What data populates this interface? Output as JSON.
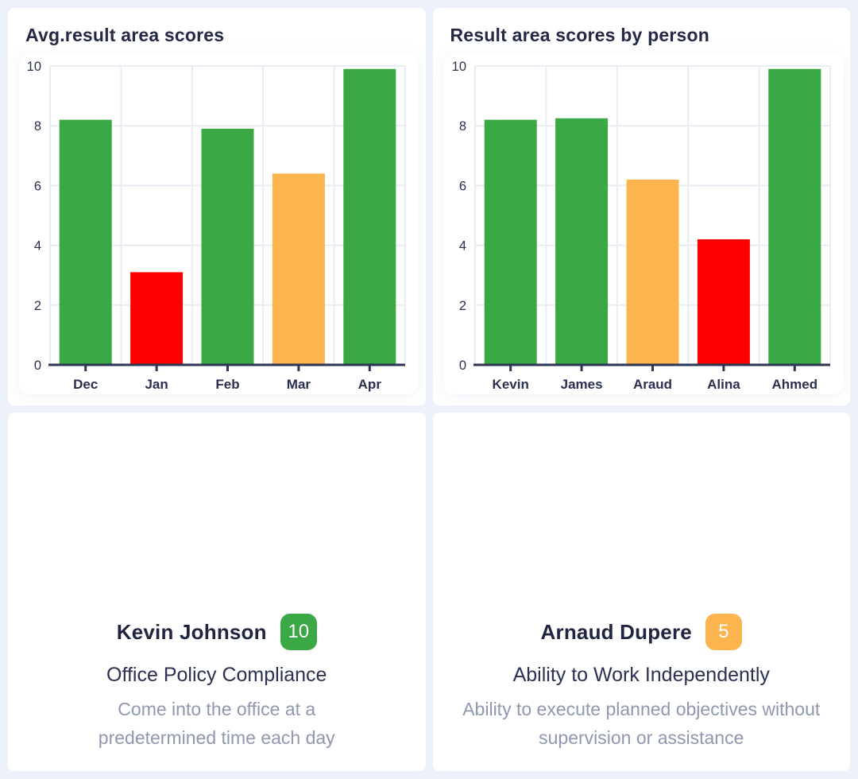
{
  "page": {
    "background": "#edf1f9",
    "card_background": "#ffffff"
  },
  "colors": {
    "green": "#3aa845",
    "orange": "#fcb44e",
    "red": "#fe0000",
    "title": "#232946",
    "tick": "#2a3050",
    "axis": "#2c3551",
    "grid": "#e8edf4",
    "muted_text": "#8f98b0"
  },
  "chart_data": [
    {
      "type": "bar",
      "title": "Avg.result area scores",
      "categories": [
        "Dec",
        "Jan",
        "Feb",
        "Mar",
        "Apr"
      ],
      "values": [
        8.2,
        3.1,
        7.9,
        6.4,
        9.9
      ],
      "bar_colors": [
        "#3aa845",
        "#fe0000",
        "#3aa845",
        "#fcb44e",
        "#3aa845"
      ],
      "xlabel": "",
      "ylabel": "",
      "ylim": [
        0,
        10
      ],
      "yticks": [
        0,
        2,
        4,
        6,
        8,
        10
      ],
      "grid": true,
      "legend": "none"
    },
    {
      "type": "bar",
      "title": "Result area scores by person",
      "categories": [
        "Kevin",
        "James",
        "Araud",
        "Alina",
        "Ahmed"
      ],
      "values": [
        8.2,
        8.25,
        6.2,
        4.2,
        9.9
      ],
      "bar_colors": [
        "#3aa845",
        "#3aa845",
        "#fcb44e",
        "#fe0000",
        "#3aa845"
      ],
      "xlabel": "",
      "ylabel": "",
      "ylim": [
        0,
        10
      ],
      "yticks": [
        0,
        2,
        4,
        6,
        8,
        10
      ],
      "grid": true,
      "legend": "none"
    }
  ],
  "highlight_cards": [
    {
      "person": "Kevin Johnson",
      "score": "10",
      "score_color": "#3aa845",
      "area": "Office Policy Compliance",
      "description": "Come into the office at a predetermined time each day"
    },
    {
      "person": "Arnaud Dupere",
      "score": "5",
      "score_color": "#fcb44e",
      "area": "Ability to Work Independently",
      "description": "Ability to execute planned objectives without supervision or assistance"
    }
  ]
}
